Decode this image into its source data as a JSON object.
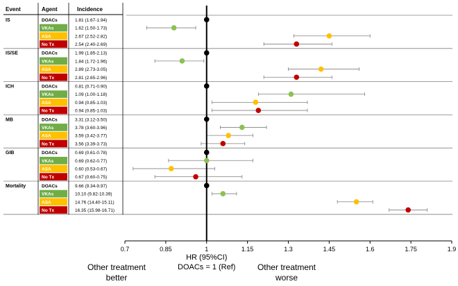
{
  "chart_data": {
    "type": "forest",
    "headers": {
      "event": "Event",
      "agent": "Agent",
      "incidence": "Incidence"
    },
    "xlabel_line1": "HR (95%CI)",
    "xlabel_line2": "DOACs = 1 (Ref)",
    "xlim": [
      0.7,
      1.9
    ],
    "reference": 1,
    "ticks": [
      "0.7",
      "0.85",
      "1",
      "1.15",
      "1.3",
      "1.45",
      "1.6",
      "1.75",
      "1.9"
    ],
    "left_note_line1": "Other treatment",
    "left_note_line2": "better",
    "right_note_line1": "Other treatment",
    "right_note_line2": "worse",
    "agent_colors": {
      "DOACs": {
        "bg": "#ffffff",
        "fg": "#000000",
        "dot": "#000000"
      },
      "VKAs": {
        "bg": "#70ad47",
        "fg": "#ffffff",
        "dot": "#8cc152"
      },
      "ASA": {
        "bg": "#ffc000",
        "fg": "#ffffff",
        "dot": "#ffc000"
      },
      "No Tx": {
        "bg": "#c00000",
        "fg": "#ffffff",
        "dot": "#c00000"
      }
    },
    "groups": [
      {
        "event": "IS",
        "rows": [
          {
            "agent": "DOACs",
            "incidence": "1.81 (1.67-1.94)",
            "hr": 1.0,
            "lo": null,
            "hi": null
          },
          {
            "agent": "VKAs",
            "incidence": "1.62 (1.50-1.73)",
            "hr": 0.88,
            "lo": 0.78,
            "hi": 0.96
          },
          {
            "agent": "ASA",
            "incidence": "2.67 (2.52-2.82)",
            "hr": 1.45,
            "lo": 1.32,
            "hi": 1.6
          },
          {
            "agent": "No Tx",
            "incidence": "2.54 (2.40-2.69)",
            "hr": 1.33,
            "lo": 1.21,
            "hi": 1.46
          }
        ]
      },
      {
        "event": "IS/SE",
        "rows": [
          {
            "agent": "DOACs",
            "incidence": "1.99 (1.85-2.13)",
            "hr": 1.0,
            "lo": null,
            "hi": null
          },
          {
            "agent": "VKAs",
            "incidence": "1.84 (1.72-1.96)",
            "hr": 0.91,
            "lo": 0.81,
            "hi": 0.99
          },
          {
            "agent": "ASA",
            "incidence": "2.89 (2.73-3.05)",
            "hr": 1.42,
            "lo": 1.3,
            "hi": 1.56
          },
          {
            "agent": "No Tx",
            "incidence": "2.81 (2.65-2.96)",
            "hr": 1.33,
            "lo": 1.21,
            "hi": 1.46
          }
        ]
      },
      {
        "event": "ICH",
        "rows": [
          {
            "agent": "DOACs",
            "incidence": "0.81 (0.71-0.90)",
            "hr": 1.0,
            "lo": null,
            "hi": null
          },
          {
            "agent": "VKAs",
            "incidence": "1.09 (1.00-1.18)",
            "hr": 1.31,
            "lo": 1.19,
            "hi": 1.58
          },
          {
            "agent": "ASA",
            "incidence": "0.94 (0.85-1.03)",
            "hr": 1.18,
            "lo": 1.02,
            "hi": 1.37
          },
          {
            "agent": "No Tx",
            "incidence": "0.94 (0.85-1.03)",
            "hr": 1.19,
            "lo": 1.02,
            "hi": 1.37
          }
        ]
      },
      {
        "event": "MB",
        "rows": [
          {
            "agent": "DOACs",
            "incidence": "3.31 (3.12-3.50)",
            "hr": 1.0,
            "lo": null,
            "hi": null
          },
          {
            "agent": "VKAs",
            "incidence": "3.78 (3.60-3.96)",
            "hr": 1.13,
            "lo": 1.05,
            "hi": 1.22
          },
          {
            "agent": "ASA",
            "incidence": "3.59 (3.42-3.77)",
            "hr": 1.08,
            "lo": 1.0,
            "hi": 1.17
          },
          {
            "agent": "No Tx",
            "incidence": "3.56 (3.39-3.73)",
            "hr": 1.06,
            "lo": 0.98,
            "hi": 1.14
          }
        ]
      },
      {
        "event": "GIB",
        "rows": [
          {
            "agent": "DOACs",
            "incidence": "0.69 (0.61-0.78)",
            "hr": 1.0,
            "lo": null,
            "hi": null
          },
          {
            "agent": "VKAs",
            "incidence": "0.69 (0.62-0.77)",
            "hr": 1.0,
            "lo": 0.86,
            "hi": 1.17
          },
          {
            "agent": "ASA",
            "incidence": "0.60 (0.53-0.67)",
            "hr": 0.87,
            "lo": 0.73,
            "hi": 1.03
          },
          {
            "agent": "No Tx",
            "incidence": "0.67 (0.60-0.75)",
            "hr": 0.96,
            "lo": 0.81,
            "hi": 1.13
          }
        ]
      },
      {
        "event": "Mortality",
        "rows": [
          {
            "agent": "DOACs",
            "incidence": "9.66 (9.34-9.97)",
            "hr": 1.0,
            "lo": null,
            "hi": null
          },
          {
            "agent": "VKAs",
            "incidence": "10.10 (9.82-10.39)",
            "hr": 1.06,
            "lo": 1.02,
            "hi": 1.11
          },
          {
            "agent": "ASA",
            "incidence": "14.76 (14.40-15.11)",
            "hr": 1.55,
            "lo": 1.48,
            "hi": 1.61
          },
          {
            "agent": "No Tx",
            "incidence": "16.35 (15.98-16.71)",
            "hr": 1.74,
            "lo": 1.67,
            "hi": 1.81
          }
        ]
      }
    ]
  }
}
